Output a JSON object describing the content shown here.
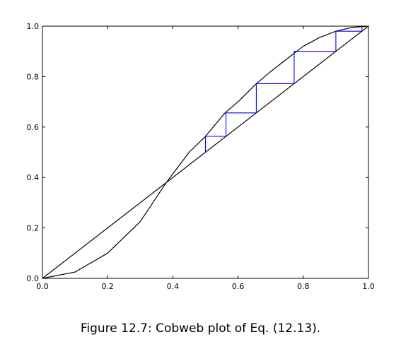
{
  "caption": "Figure 12.7: Cobweb plot of Eq. (12.13).",
  "chart_data": {
    "type": "line",
    "title": "",
    "xlabel": "",
    "ylabel": "",
    "xlim": [
      0.0,
      1.0
    ],
    "ylim": [
      0.0,
      1.0
    ],
    "x_ticks": [
      "0.0",
      "0.2",
      "0.4",
      "0.6",
      "0.8",
      "1.0"
    ],
    "y_ticks": [
      "0.0",
      "0.2",
      "0.4",
      "0.6",
      "0.8",
      "1.0"
    ],
    "grid": false,
    "series": [
      {
        "color": "#000000",
        "x": [
          0.0,
          0.1,
          0.2,
          0.3,
          0.38,
          0.45,
          0.5,
          0.56,
          0.6,
          0.656,
          0.7,
          0.75,
          0.8,
          0.85,
          0.9,
          0.95,
          1.0
        ],
        "y": [
          0.0,
          0.025,
          0.1,
          0.225,
          0.38,
          0.5,
          0.563,
          0.656,
          0.7,
          0.772,
          0.82,
          0.87,
          0.92,
          0.955,
          0.98,
          0.995,
          1.0
        ]
      },
      {
        "color": "#000000",
        "x": [
          0.0,
          1.0
        ],
        "y": [
          0.0,
          1.0
        ]
      },
      {
        "color": "#0000ff",
        "x": [
          0.5,
          0.5,
          0.563,
          0.563,
          0.656,
          0.656,
          0.772,
          0.772,
          0.9,
          0.9,
          0.98,
          0.98,
          1.0
        ],
        "y": [
          0.5,
          0.563,
          0.563,
          0.656,
          0.656,
          0.772,
          0.772,
          0.9,
          0.9,
          0.98,
          0.98,
          1.0,
          1.0
        ]
      }
    ]
  }
}
